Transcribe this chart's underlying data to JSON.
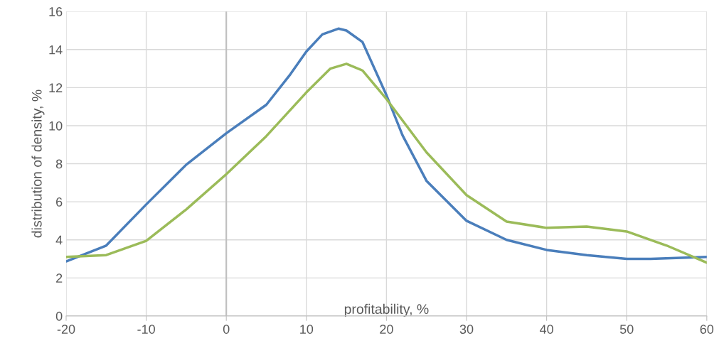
{
  "chart_data": {
    "type": "line",
    "xlabel": "profitability, %",
    "ylabel": "distribution of density, %",
    "xlim": [
      -20,
      60
    ],
    "ylim": [
      0,
      16
    ],
    "xticks": [
      -20,
      -10,
      0,
      10,
      20,
      30,
      40,
      50,
      60
    ],
    "yticks": [
      0,
      2,
      4,
      6,
      8,
      10,
      12,
      14,
      16
    ],
    "grid": true,
    "marker": "none",
    "line_style": "solid",
    "ref_lines": [
      {
        "axis": "x",
        "value": 0,
        "color": "#bfbfbf"
      }
    ],
    "series": [
      {
        "color": "#4a7ebb",
        "x": [
          -20,
          -15,
          -10,
          -5,
          0,
          5,
          8,
          10,
          12,
          14,
          15,
          17,
          20,
          22,
          25,
          30,
          35,
          40,
          45,
          50,
          53,
          60
        ],
        "values": [
          2.87,
          3.7,
          5.86,
          7.95,
          9.6,
          11.1,
          12.7,
          13.9,
          14.8,
          15.1,
          15.0,
          14.4,
          11.6,
          9.5,
          7.1,
          5.0,
          4.0,
          3.47,
          3.2,
          3.0,
          3.0,
          3.1
        ]
      },
      {
        "color": "#9bbb59",
        "x": [
          -20,
          -15,
          -10,
          -5,
          0,
          5,
          10,
          13,
          15,
          17,
          20,
          25,
          30,
          35,
          40,
          45,
          50,
          55,
          60
        ],
        "values": [
          3.1,
          3.2,
          3.95,
          5.6,
          7.45,
          9.45,
          11.75,
          13.0,
          13.25,
          12.9,
          11.4,
          8.6,
          6.35,
          4.96,
          4.63,
          4.7,
          4.44,
          3.7,
          2.8
        ]
      }
    ]
  }
}
